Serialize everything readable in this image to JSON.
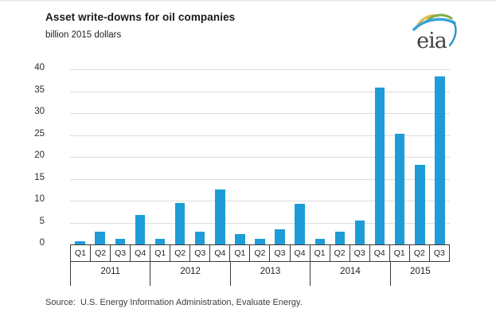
{
  "header": {
    "title": "Asset write-downs for oil companies",
    "subtitle": "billion 2015 dollars",
    "logo_text": "eia"
  },
  "chart_data": {
    "type": "bar",
    "title": "Asset write-downs for oil companies",
    "units_label": "billion 2015 dollars",
    "xlabel": "",
    "ylabel": "billion 2015 dollars",
    "ylim": [
      0,
      40
    ],
    "ytick_step": 5,
    "yticks": [
      0,
      5,
      10,
      15,
      20,
      25,
      30,
      35,
      40
    ],
    "grid": true,
    "legend": null,
    "bar_color": "#1e9cd8",
    "quarters": [
      "Q1",
      "Q2",
      "Q3",
      "Q4",
      "Q1",
      "Q2",
      "Q3",
      "Q4",
      "Q1",
      "Q2",
      "Q3",
      "Q4",
      "Q1",
      "Q2",
      "Q3",
      "Q4",
      "Q1",
      "Q2",
      "Q3"
    ],
    "year_groups": [
      {
        "label": "2011",
        "quarters": 4
      },
      {
        "label": "2012",
        "quarters": 4
      },
      {
        "label": "2013",
        "quarters": 4
      },
      {
        "label": "2014",
        "quarters": 4
      },
      {
        "label": "2015",
        "quarters": 3
      }
    ],
    "values": [
      0.8,
      2.9,
      1.2,
      6.8,
      1.3,
      9.5,
      2.9,
      12.6,
      2.4,
      1.2,
      3.4,
      9.2,
      1.2,
      2.9,
      5.4,
      35.9,
      25.2,
      18.1,
      38.3
    ],
    "source": "Source:  U.S. Energy Information Administration, Evaluate Energy."
  },
  "footer": {
    "source": "Source:  U.S. Energy Information Administration, Evaluate Energy."
  },
  "colors": {
    "bar": "#1e9cd8",
    "gridline": "#dcdcdc",
    "axis": "#3a3a3a",
    "logo_yellow": "#ddbe48",
    "logo_green": "#7fae46",
    "logo_blue": "#3aa3d8"
  }
}
